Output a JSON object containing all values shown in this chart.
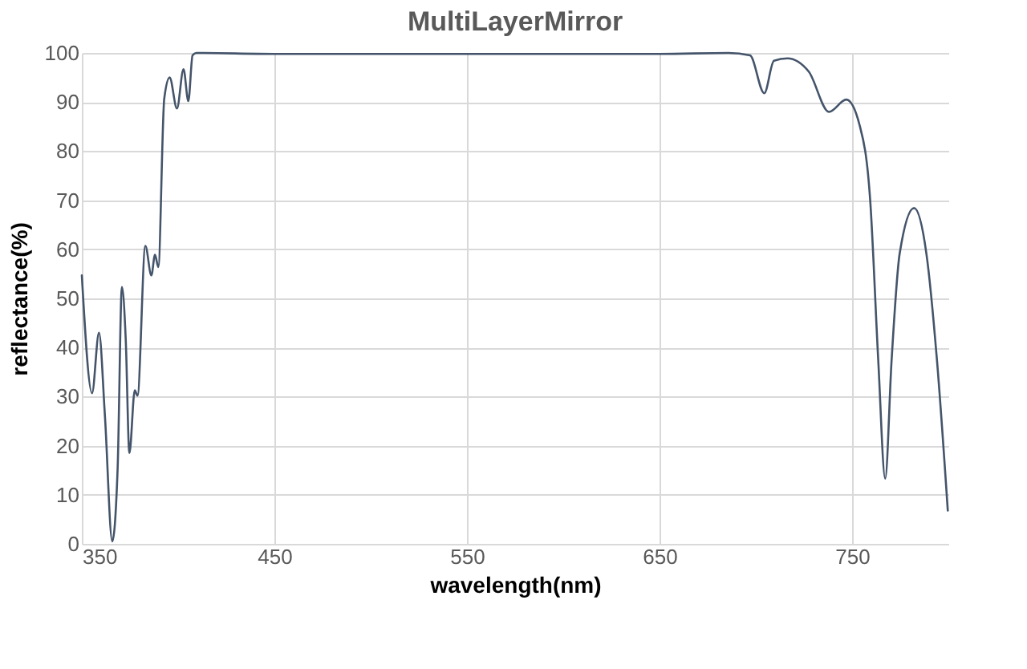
{
  "chart_data": {
    "type": "line",
    "title": "MultiLayerMirror",
    "xlabel": "wavelength(nm)",
    "ylabel": "reflectance(%)",
    "xlim": [
      350,
      800
    ],
    "xticks": [
      350,
      450,
      550,
      650,
      750
    ],
    "ylim": [
      0,
      100
    ],
    "yticks": [
      0,
      10,
      20,
      30,
      40,
      50,
      60,
      70,
      80,
      90,
      100
    ],
    "grid": true,
    "marker": "none",
    "line_style": "solid",
    "legend": false,
    "series": [
      {
        "color": "#44546a",
        "x": [
          350,
          355.3,
          358.9,
          362,
          365.8,
          368.6,
          370.8,
          372.8,
          374.7,
          377.5,
          378.9,
          383,
          386.1,
          388,
          389.7,
          392.8,
          395.6,
          399.4,
          402.8,
          405.3,
          407.5,
          409.4,
          450,
          550,
          650,
          685.8,
          697,
          704.4,
          709.4,
          716.4,
          727.5,
          738,
          747,
          753.9,
          759.4,
          763.6,
          767.2,
          770.5,
          774.7,
          782.2,
          788.6,
          794.1,
          799.7
        ],
        "values": [
          54.7,
          30.7,
          43,
          26,
          0.5,
          15.5,
          52.3,
          41.6,
          18.5,
          31.3,
          30.2,
          60.7,
          54.7,
          58.9,
          56.4,
          90.7,
          95,
          88.7,
          96.7,
          90.2,
          99.5,
          100,
          99.8,
          99.8,
          99.8,
          100,
          99.5,
          91.8,
          98.4,
          98.9,
          96.2,
          88,
          90.5,
          85.3,
          70,
          37.3,
          13.3,
          37.3,
          59.1,
          68.4,
          59.1,
          37.3,
          6.8
        ]
      }
    ]
  }
}
